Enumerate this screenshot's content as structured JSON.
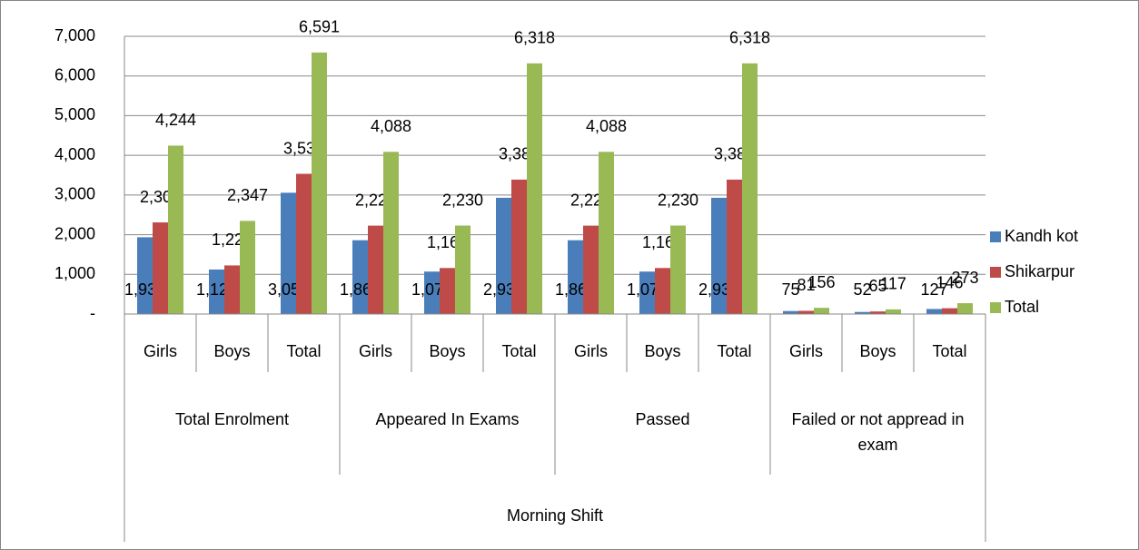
{
  "chart_data": {
    "type": "bar",
    "categories": [
      "Girls",
      "Boys",
      "Total",
      "Girls",
      "Boys",
      "Total",
      "Girls",
      "Boys",
      "Total",
      "Girls",
      "Boys",
      "Total"
    ],
    "category_groups": [
      "Total Enrolment",
      "Appeared In Exams",
      "Passed",
      "Failed or not appread in exam"
    ],
    "category_super_groups": [
      "Morning Shift"
    ],
    "series": [
      {
        "name": "Kandh kot",
        "color": "#4a7ebb",
        "values": [
          1935,
          1122,
          3057,
          1860,
          1070,
          2930,
          1860,
          1070,
          2930,
          75,
          52,
          127
        ],
        "value_labels": [
          "1,935",
          "1,122",
          "3,057",
          "1,860",
          "1,070",
          "2,930",
          "1,860",
          "1,070",
          "2,930",
          "75",
          "52",
          "127"
        ]
      },
      {
        "name": "Shikarpur",
        "color": "#be4b48",
        "values": [
          2309,
          1225,
          3534,
          2228,
          1160,
          3388,
          2228,
          1160,
          3388,
          81,
          65,
          146
        ],
        "value_labels": [
          "2,309",
          "1,225",
          "3,534",
          "2,228",
          "1,160",
          "3,388",
          "2,228",
          "1,160",
          "3,388",
          "81",
          "65",
          "146"
        ]
      },
      {
        "name": "Total",
        "color": "#98b954",
        "values": [
          4244,
          2347,
          6591,
          4088,
          2230,
          6318,
          4088,
          2230,
          6318,
          156,
          117,
          273
        ],
        "value_labels": [
          "4,244",
          "2,347",
          "6,591",
          "4,088",
          "2,230",
          "6,318",
          "4,088",
          "2,230",
          "6,318",
          "156",
          "117",
          "273"
        ]
      }
    ],
    "ylim": [
      0,
      7000
    ],
    "yticks": [
      {
        "value": 0,
        "label": "-"
      },
      {
        "value": 1000,
        "label": "1,000"
      },
      {
        "value": 2000,
        "label": "2,000"
      },
      {
        "value": 3000,
        "label": "3,000"
      },
      {
        "value": 4000,
        "label": "4,000"
      },
      {
        "value": 5000,
        "label": "5,000"
      },
      {
        "value": 6000,
        "label": "6,000"
      },
      {
        "value": 7000,
        "label": "7,000"
      }
    ],
    "grid": true,
    "legend": "right"
  }
}
